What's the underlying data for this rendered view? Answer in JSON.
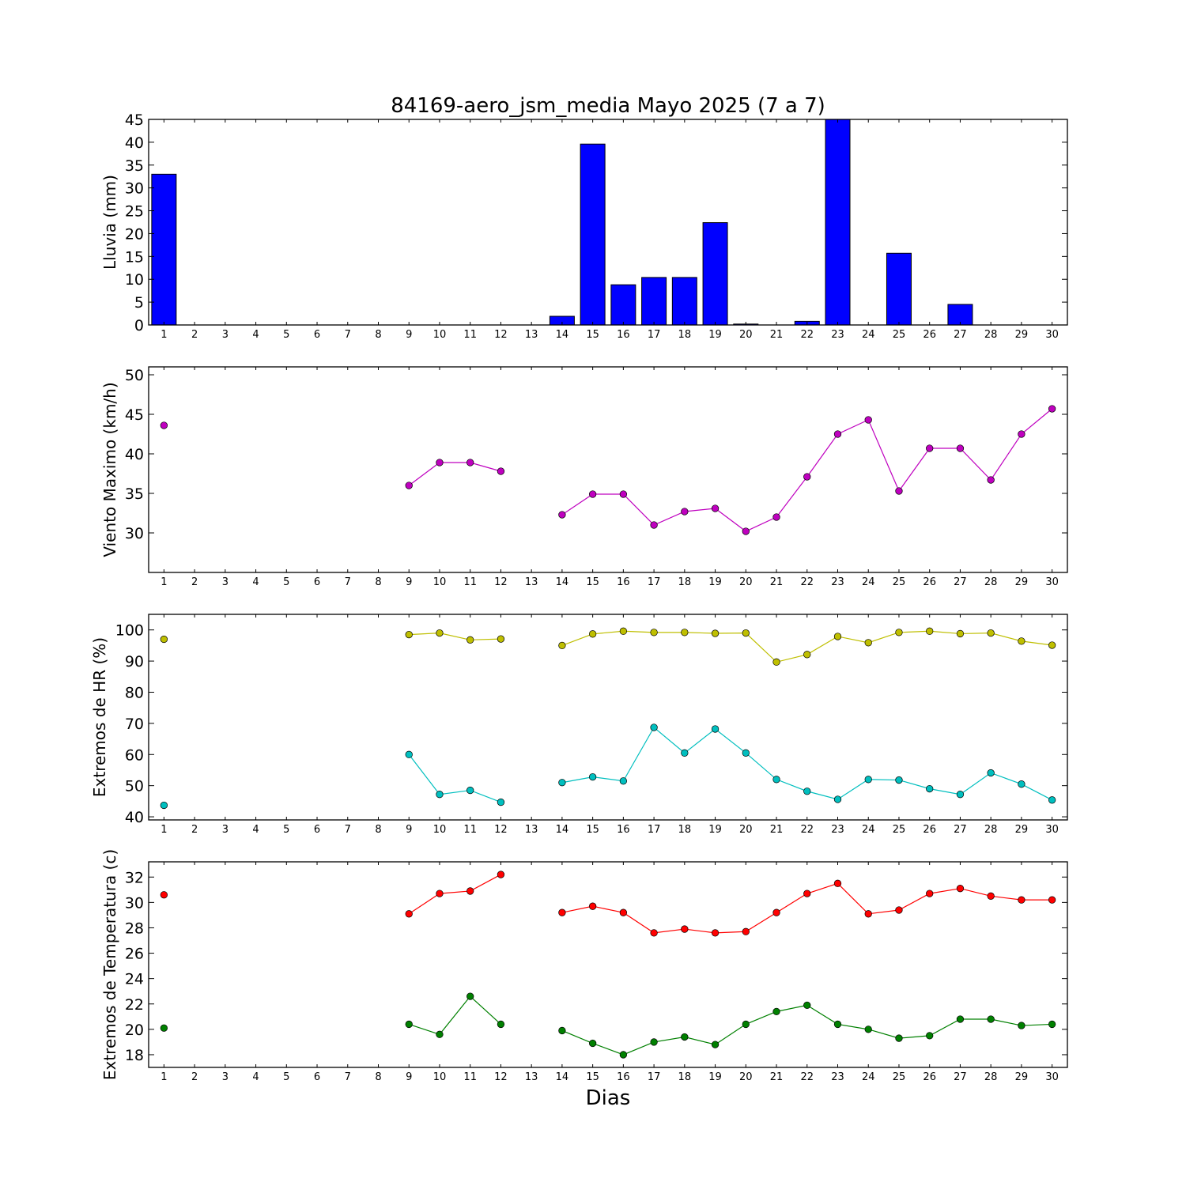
{
  "chart_data": {
    "title": "84169-aero_jsm_media Mayo 2025  (7 a 7)",
    "xlabel": "Dias",
    "days": [
      1,
      2,
      3,
      4,
      5,
      6,
      7,
      8,
      9,
      10,
      11,
      12,
      13,
      14,
      15,
      16,
      17,
      18,
      19,
      20,
      21,
      22,
      23,
      24,
      25,
      26,
      27,
      28,
      29,
      30
    ],
    "panels": [
      {
        "type": "bar",
        "ylabel": "Lluvia (mm)",
        "ylim": [
          0,
          45
        ],
        "yticks": [
          0,
          5,
          10,
          15,
          20,
          25,
          30,
          35,
          40,
          45
        ],
        "series": [
          {
            "color": "#0000ff",
            "values": [
              33.0,
              0,
              0,
              0,
              0,
              0,
              0,
              0,
              0,
              0,
              0,
              0,
              0,
              1.9,
              39.6,
              8.8,
              10.4,
              10.4,
              22.4,
              0.2,
              0,
              0.8,
              45,
              0,
              15.7,
              0,
              4.5,
              0,
              0,
              0
            ]
          }
        ]
      },
      {
        "type": "line",
        "ylabel": "Viento Maximo (km/h)",
        "ylim": [
          25,
          51
        ],
        "yticks": [
          30,
          35,
          40,
          45,
          50
        ],
        "series": [
          {
            "color": "#bf00bf",
            "values": [
              43.6,
              null,
              null,
              null,
              null,
              null,
              null,
              null,
              36.0,
              38.9,
              38.9,
              37.8,
              null,
              32.3,
              34.9,
              34.9,
              31.0,
              32.7,
              33.1,
              30.2,
              32.0,
              37.1,
              42.5,
              44.3,
              35.3,
              40.7,
              40.7,
              36.7,
              42.5,
              45.7
            ]
          }
        ]
      },
      {
        "type": "line",
        "ylabel": "Extremos de HR (%)",
        "ylim": [
          39,
          105
        ],
        "yticks": [
          40,
          50,
          60,
          70,
          80,
          90,
          100
        ],
        "series": [
          {
            "color": "#bfbf00",
            "values": [
              97.0,
              null,
              null,
              null,
              null,
              null,
              null,
              null,
              98.5,
              99.0,
              96.8,
              97.1,
              null,
              95.0,
              98.7,
              99.6,
              99.2,
              99.2,
              98.9,
              99.0,
              89.7,
              92.1,
              97.9,
              95.9,
              99.2,
              99.6,
              98.8,
              99.0,
              96.4,
              95.1
            ]
          },
          {
            "color": "#00bfbf",
            "values": [
              43.7,
              null,
              null,
              null,
              null,
              null,
              null,
              null,
              60.0,
              47.2,
              48.5,
              44.7,
              null,
              51.0,
              52.8,
              51.5,
              68.7,
              60.5,
              68.2,
              60.5,
              52.0,
              48.2,
              45.6,
              52.0,
              51.8,
              49.0,
              47.2,
              54.1,
              50.5,
              45.4
            ]
          }
        ]
      },
      {
        "type": "line",
        "ylabel": "Extremos de Temperatura (c)",
        "ylim": [
          17,
          33.2
        ],
        "yticks": [
          18,
          20,
          22,
          24,
          26,
          28,
          30,
          32
        ],
        "series": [
          {
            "color": "#ff0000",
            "values": [
              30.6,
              null,
              null,
              null,
              null,
              null,
              null,
              null,
              29.1,
              30.7,
              30.9,
              32.2,
              null,
              29.2,
              29.7,
              29.2,
              27.6,
              27.9,
              27.6,
              27.7,
              29.2,
              30.7,
              31.5,
              29.1,
              29.4,
              30.7,
              31.1,
              30.5,
              30.2,
              30.2
            ]
          },
          {
            "color": "#008000",
            "values": [
              20.1,
              null,
              null,
              null,
              null,
              null,
              null,
              null,
              20.4,
              19.6,
              22.6,
              20.4,
              null,
              19.9,
              18.9,
              18.0,
              19.0,
              19.4,
              18.8,
              20.4,
              21.4,
              21.9,
              20.4,
              20.0,
              19.3,
              19.5,
              20.8,
              20.8,
              20.3,
              20.4
            ]
          }
        ]
      }
    ]
  }
}
